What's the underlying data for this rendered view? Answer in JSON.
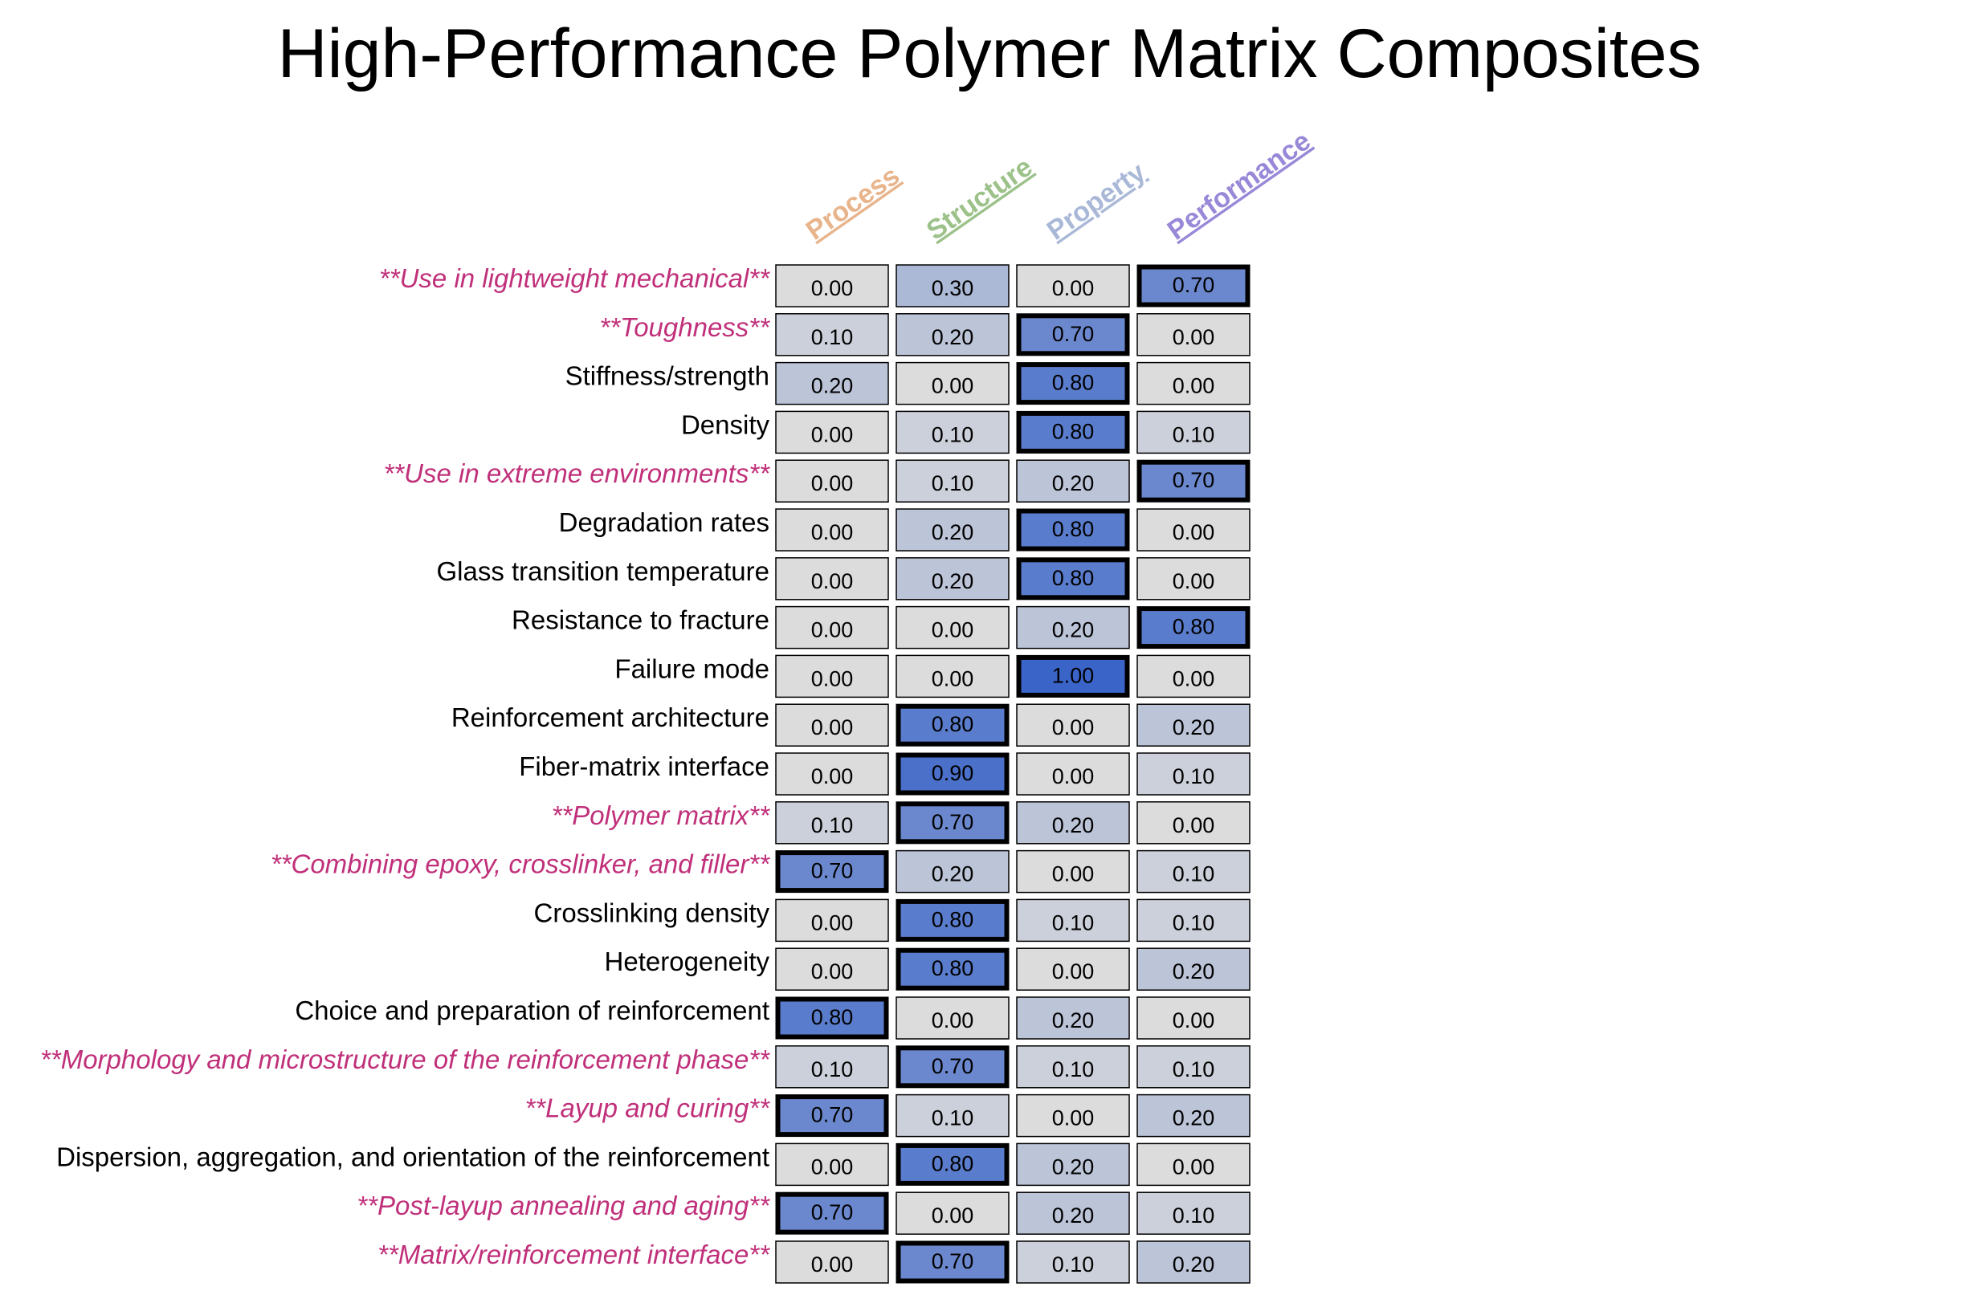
{
  "chart_data": {
    "type": "heatmap",
    "title": "High-Performance Polymer Matrix Composites",
    "columns": [
      {
        "label": "Process",
        "color": "#e8b48c"
      },
      {
        "label": "Structure",
        "color": "#9cc28a"
      },
      {
        "label": "Property",
        "color": "#aab8d8"
      },
      {
        "label": "Performance",
        "color": "#9988d8"
      }
    ],
    "rows": [
      {
        "label": "**Use in lightweight mechanical**",
        "emphasized": true,
        "values": [
          0.0,
          0.3,
          0.0,
          0.7
        ]
      },
      {
        "label": "**Toughness**",
        "emphasized": true,
        "values": [
          0.1,
          0.2,
          0.7,
          0.0
        ]
      },
      {
        "label": "Stiffness/strength",
        "emphasized": false,
        "values": [
          0.2,
          0.0,
          0.8,
          0.0
        ]
      },
      {
        "label": "Density",
        "emphasized": false,
        "values": [
          0.0,
          0.1,
          0.8,
          0.1
        ]
      },
      {
        "label": "**Use in extreme environments**",
        "emphasized": true,
        "values": [
          0.0,
          0.1,
          0.2,
          0.7
        ]
      },
      {
        "label": "Degradation rates",
        "emphasized": false,
        "values": [
          0.0,
          0.2,
          0.8,
          0.0
        ]
      },
      {
        "label": "Glass transition temperature",
        "emphasized": false,
        "values": [
          0.0,
          0.2,
          0.8,
          0.0
        ]
      },
      {
        "label": "Resistance to fracture",
        "emphasized": false,
        "values": [
          0.0,
          0.0,
          0.2,
          0.8
        ]
      },
      {
        "label": "Failure mode",
        "emphasized": false,
        "values": [
          0.0,
          0.0,
          1.0,
          0.0
        ]
      },
      {
        "label": "Reinforcement architecture",
        "emphasized": false,
        "values": [
          0.0,
          0.8,
          0.0,
          0.2
        ]
      },
      {
        "label": "Fiber-matrix interface",
        "emphasized": false,
        "values": [
          0.0,
          0.9,
          0.0,
          0.1
        ]
      },
      {
        "label": "**Polymer matrix**",
        "emphasized": true,
        "values": [
          0.1,
          0.7,
          0.2,
          0.0
        ]
      },
      {
        "label": "**Combining epoxy, crosslinker, and filler**",
        "emphasized": true,
        "values": [
          0.7,
          0.2,
          0.0,
          0.1
        ]
      },
      {
        "label": "Crosslinking density",
        "emphasized": false,
        "values": [
          0.0,
          0.8,
          0.1,
          0.1
        ]
      },
      {
        "label": "Heterogeneity",
        "emphasized": false,
        "values": [
          0.0,
          0.8,
          0.0,
          0.2
        ]
      },
      {
        "label": "Choice and preparation of reinforcement",
        "emphasized": false,
        "values": [
          0.8,
          0.0,
          0.2,
          0.0
        ]
      },
      {
        "label": "**Morphology and microstructure of the reinforcement phase**",
        "emphasized": true,
        "values": [
          0.1,
          0.7,
          0.1,
          0.1
        ]
      },
      {
        "label": "**Layup and curing**",
        "emphasized": true,
        "values": [
          0.7,
          0.1,
          0.0,
          0.2
        ]
      },
      {
        "label": "Dispersion, aggregation, and orientation of the reinforcement",
        "emphasized": false,
        "values": [
          0.0,
          0.8,
          0.2,
          0.0
        ]
      },
      {
        "label": "**Post-layup annealing and aging**",
        "emphasized": true,
        "values": [
          0.7,
          0.0,
          0.2,
          0.1
        ]
      },
      {
        "label": "**Matrix/reinforcement interface**",
        "emphasized": true,
        "values": [
          0.0,
          0.7,
          0.1,
          0.2
        ]
      }
    ],
    "value_range": [
      0,
      1
    ],
    "highlight_threshold": 0.5,
    "colors": {
      "emphasized_label": "#c0307a",
      "normal_label": "#000000",
      "cell_low": "#dcdcdc",
      "cell_high": "#3a64c8",
      "cell_border": "#000000"
    },
    "grid": false,
    "legend": "none"
  }
}
